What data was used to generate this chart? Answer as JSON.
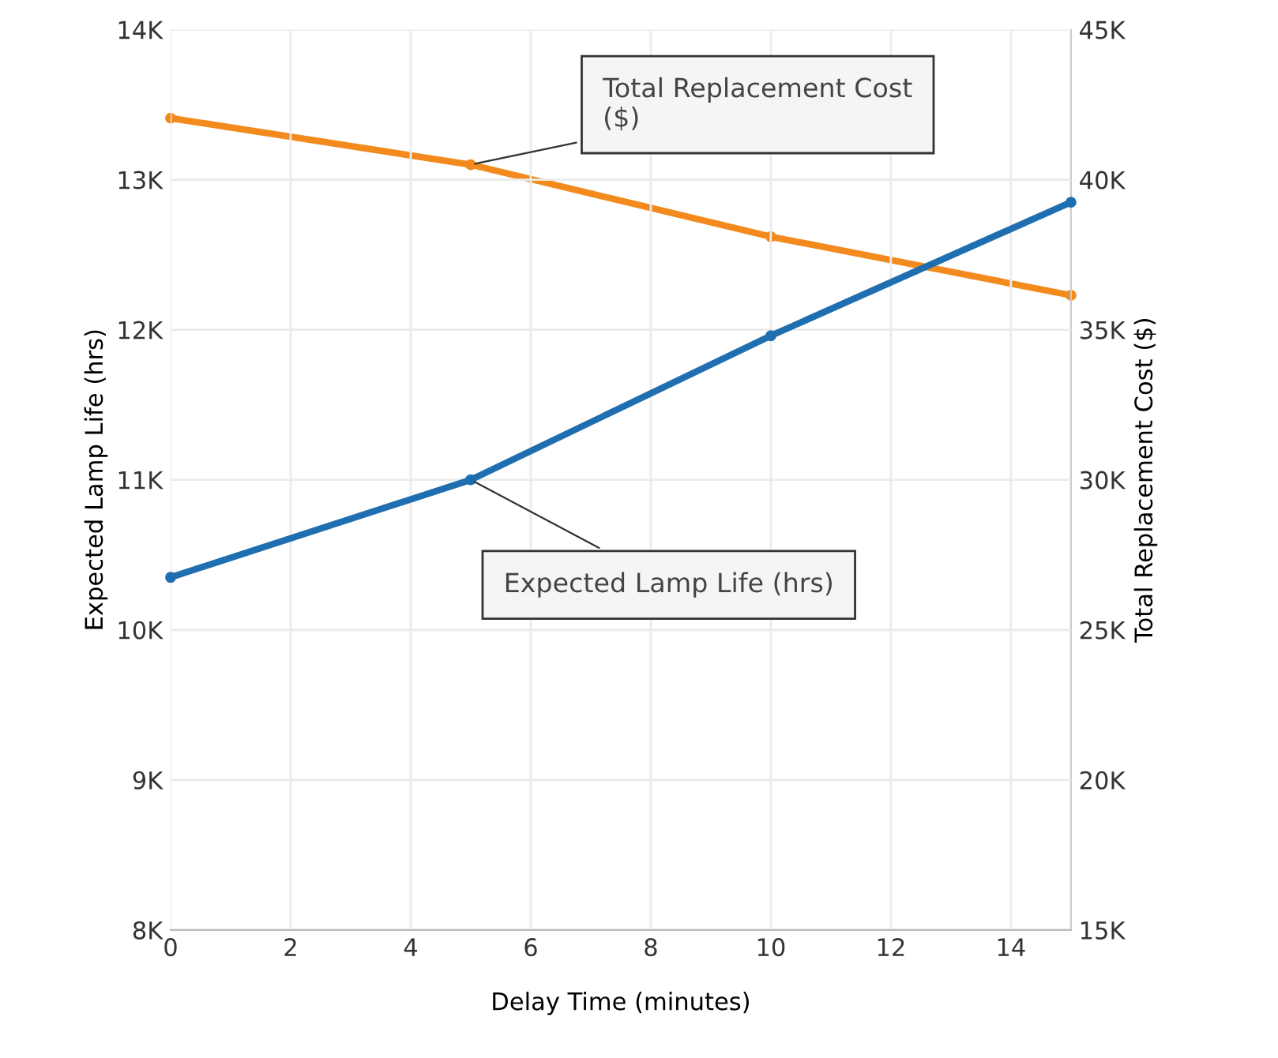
{
  "chart_data": {
    "type": "line",
    "x": [
      0,
      5,
      10,
      15
    ],
    "series": [
      {
        "color": "#1f6fb0",
        "values": [
          10350,
          11000,
          11960,
          12850
        ]
      },
      {
        "color": "#f28a1e",
        "values": [
          42050,
          40500,
          38100,
          36150
        ],
        "axis": "y2"
      }
    ],
    "xlabel": "Delay Time (minutes)",
    "ylabel": "Expected Lamp Life (hrs)",
    "y2label": "Total Replacement Cost ($)",
    "xlim": [
      0,
      15
    ],
    "xticks": [
      0,
      2,
      4,
      6,
      8,
      10,
      12,
      14
    ],
    "ylim": [
      8000,
      14000
    ],
    "yticks": [
      {
        "value": 8000,
        "label": "8K"
      },
      {
        "value": 9000,
        "label": "9K"
      },
      {
        "value": 10000,
        "label": "10K"
      },
      {
        "value": 11000,
        "label": "11K"
      },
      {
        "value": 12000,
        "label": "12K"
      },
      {
        "value": 13000,
        "label": "13K"
      },
      {
        "value": 14000,
        "label": "14K"
      }
    ],
    "y2lim": [
      15000,
      45000
    ],
    "y2ticks": [
      {
        "value": 15000,
        "label": "15K"
      },
      {
        "value": 20000,
        "label": "20K"
      },
      {
        "value": 25000,
        "label": "25K"
      },
      {
        "value": 30000,
        "label": "30K"
      },
      {
        "value": 35000,
        "label": "35K"
      },
      {
        "value": 40000,
        "label": "40K"
      },
      {
        "value": 45000,
        "label": "45K"
      }
    ],
    "annotations": [
      {
        "text": "Total Replacement Cost\n($)",
        "x": 5,
        "y": 13100
      },
      {
        "text": "Expected Lamp Life (hrs)",
        "x": 5,
        "y": 11000
      }
    ],
    "grid": true,
    "marker": "circle",
    "line_style": "solid",
    "legend": false
  }
}
